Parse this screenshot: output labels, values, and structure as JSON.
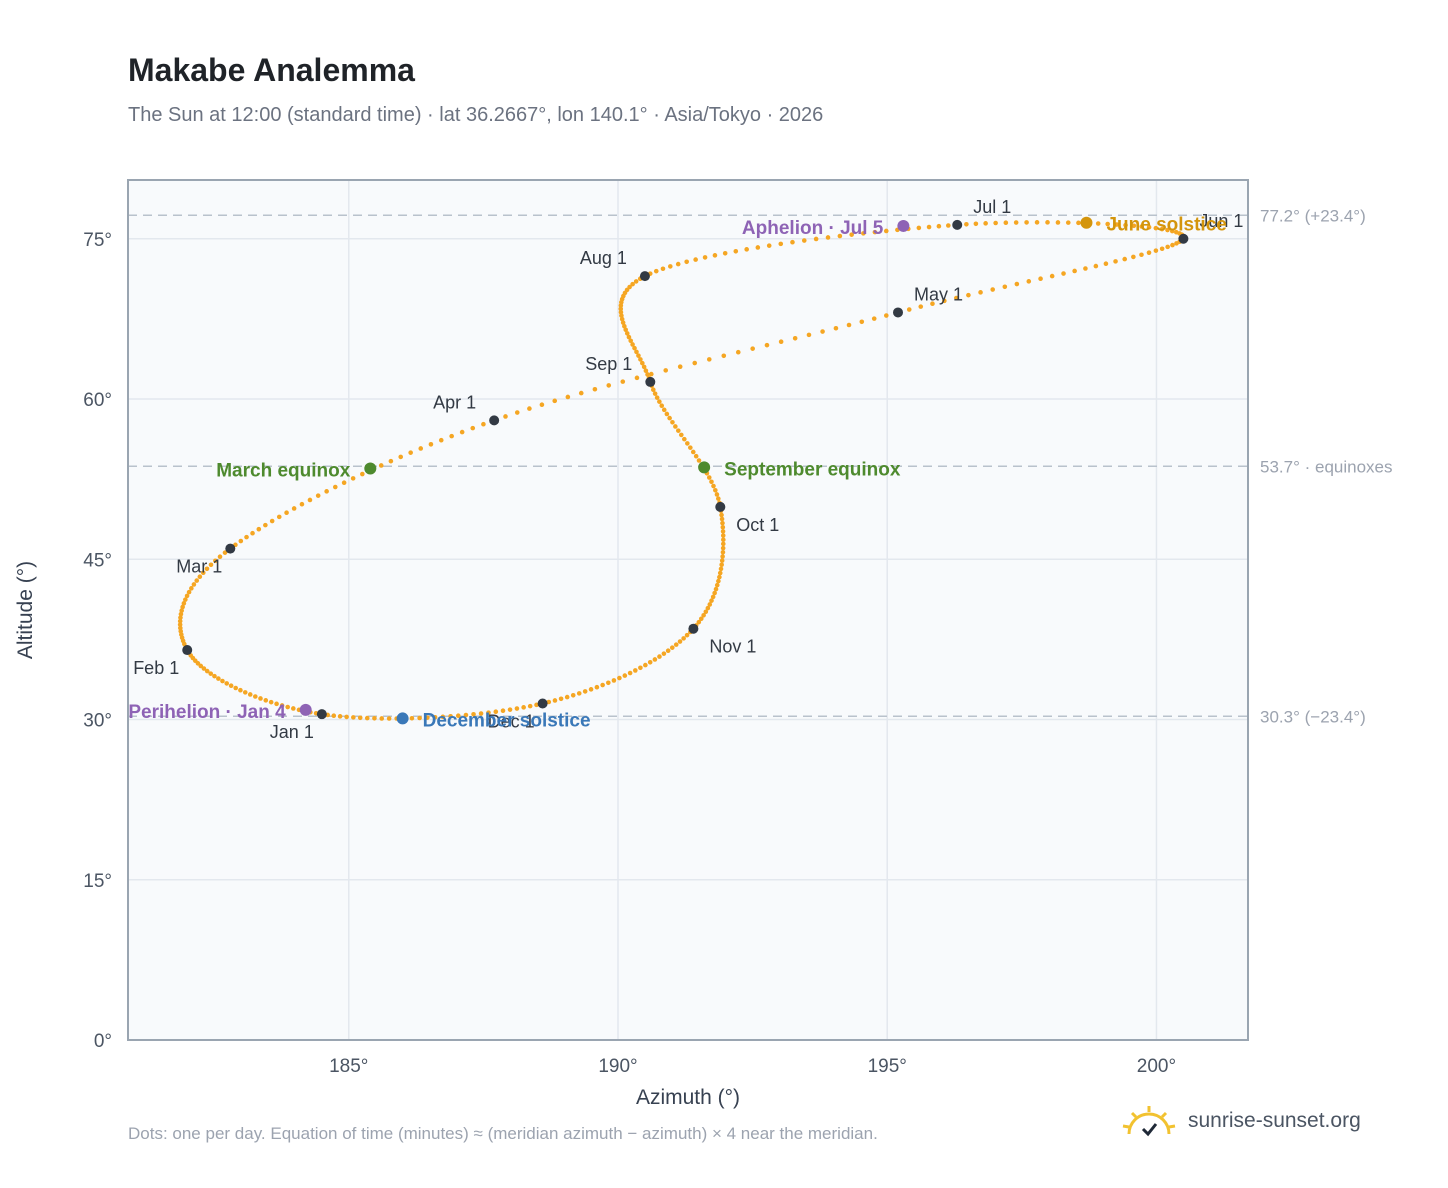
{
  "page": {
    "title": "Makabe Analemma",
    "subtitle": "The Sun at 12:00 (standard time) · lat 36.2667°, lon 140.1° · Asia/Tokyo · 2026",
    "footnote": "Dots: one per day. Equation of time (minutes) ≈ (meridian azimuth − azimuth) × 4 near the meridian.",
    "brand": "sunrise-sunset.org"
  },
  "colors": {
    "curve": "#f5a623",
    "month_marker": "#333a44",
    "equinox": "#4e8a2e",
    "june_solstice": "#d4950c",
    "december_solstice": "#3a78b8",
    "apsis": "#8e63b5",
    "reference_line": "#b9c2cc",
    "grid": "#e3e8ee",
    "plot_bg": "#f8fafc",
    "axis_border": "#9aa5b1"
  },
  "chart_data": {
    "type": "scatter",
    "xlabel": "Azimuth (°)",
    "ylabel": "Altitude (°)",
    "xlim": [
      180.9,
      201.7
    ],
    "ylim": [
      0,
      80.5
    ],
    "x_ticks": [
      185,
      190,
      195,
      200
    ],
    "y_ticks": [
      0,
      15,
      30,
      45,
      60,
      75
    ],
    "x_tick_labels": [
      "185°",
      "190°",
      "195°",
      "200°"
    ],
    "y_tick_labels": [
      "0°",
      "15°",
      "30°",
      "45°",
      "60°",
      "75°"
    ],
    "grid": true,
    "reference_lines": [
      {
        "y": 77.2,
        "label": "77.2° (+23.4°)"
      },
      {
        "y": 53.7,
        "label": "53.7° · equinoxes"
      },
      {
        "y": 30.3,
        "label": "30.3° (−23.4°)"
      }
    ],
    "months": [
      {
        "label": "Jan 1",
        "x": 184.5,
        "y": 30.5,
        "pos": "below-left"
      },
      {
        "label": "Feb 1",
        "x": 182.0,
        "y": 36.5,
        "pos": "below-left"
      },
      {
        "label": "Mar 1",
        "x": 182.8,
        "y": 46.0,
        "pos": "below-left"
      },
      {
        "label": "Apr 1",
        "x": 187.7,
        "y": 58.0,
        "pos": "above-left"
      },
      {
        "label": "May 1",
        "x": 195.2,
        "y": 68.1,
        "pos": "above-right"
      },
      {
        "label": "Jun 1",
        "x": 200.5,
        "y": 75.0,
        "pos": "above-right"
      },
      {
        "label": "Jul 1",
        "x": 196.3,
        "y": 76.3,
        "pos": "above-right"
      },
      {
        "label": "Aug 1",
        "x": 190.5,
        "y": 71.5,
        "pos": "above-left"
      },
      {
        "label": "Sep 1",
        "x": 190.6,
        "y": 61.6,
        "pos": "above-left"
      },
      {
        "label": "Oct 1",
        "x": 191.9,
        "y": 49.9,
        "pos": "below-right"
      },
      {
        "label": "Nov 1",
        "x": 191.4,
        "y": 38.5,
        "pos": "below-right"
      },
      {
        "label": "Dec 1",
        "x": 188.6,
        "y": 31.5,
        "pos": "below-left"
      }
    ],
    "events": [
      {
        "label": "March equinox",
        "x": 185.4,
        "y": 53.5,
        "kind": "equinox",
        "pos": "left"
      },
      {
        "label": "September equinox",
        "x": 191.6,
        "y": 53.6,
        "kind": "equinox",
        "pos": "right"
      },
      {
        "label": "June solstice",
        "x": 198.7,
        "y": 76.5,
        "kind": "june_solstice",
        "pos": "right"
      },
      {
        "label": "December solstice",
        "x": 186.0,
        "y": 30.1,
        "kind": "december_solstice",
        "pos": "right"
      },
      {
        "label": "Perihelion · Jan 4",
        "x": 184.2,
        "y": 30.9,
        "kind": "apsis",
        "pos": "left"
      },
      {
        "label": "Aphelion · Jul 5",
        "x": 195.3,
        "y": 76.2,
        "kind": "apsis",
        "pos": "left"
      }
    ]
  }
}
